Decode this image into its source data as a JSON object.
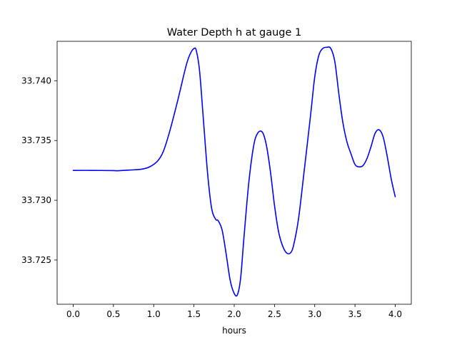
{
  "chart_data": {
    "type": "line",
    "title": "Water Depth h at gauge 1",
    "xlabel": "hours",
    "ylabel": "",
    "xlim": [
      -0.2,
      4.2
    ],
    "ylim": [
      33.7213,
      33.7433
    ],
    "xticks": [
      0.0,
      0.5,
      1.0,
      1.5,
      2.0,
      2.5,
      3.0,
      3.5,
      4.0
    ],
    "xtick_labels": [
      "0.0",
      "0.5",
      "1.0",
      "1.5",
      "2.0",
      "2.5",
      "3.0",
      "3.5",
      "4.0"
    ],
    "yticks": [
      33.725,
      33.73,
      33.735,
      33.74
    ],
    "ytick_labels": [
      "33.725",
      "33.730",
      "33.735",
      "33.740"
    ],
    "grid": false,
    "series": [
      {
        "color": "#0000ff",
        "x": [
          0.0,
          0.25,
          0.5,
          0.55,
          0.7,
          0.85,
          0.95,
          1.05,
          1.12,
          1.2,
          1.3,
          1.4,
          1.45,
          1.5,
          1.53,
          1.57,
          1.62,
          1.67,
          1.72,
          1.77,
          1.8,
          1.85,
          1.9,
          1.95,
          2.0,
          2.04,
          2.08,
          2.12,
          2.18,
          2.24,
          2.29,
          2.35,
          2.4,
          2.45,
          2.5,
          2.55,
          2.6,
          2.65,
          2.7,
          2.74,
          2.8,
          2.87,
          2.95,
          3.0,
          3.05,
          3.1,
          3.15,
          3.2,
          3.25,
          3.3,
          3.35,
          3.4,
          3.45,
          3.5,
          3.55,
          3.6,
          3.65,
          3.7,
          3.75,
          3.8,
          3.85,
          3.9,
          3.95,
          4.0
        ],
        "y": [
          33.7325,
          33.7325,
          33.73248,
          33.73247,
          33.73253,
          33.7326,
          33.7328,
          33.7333,
          33.7341,
          33.7358,
          33.7384,
          33.7412,
          33.7422,
          33.7427,
          33.7425,
          33.7408,
          33.7365,
          33.7322,
          33.7293,
          33.7284,
          33.7283,
          33.7275,
          33.7255,
          33.7233,
          33.7222,
          33.7221,
          33.7235,
          33.7268,
          33.7314,
          33.7345,
          33.7356,
          33.7357,
          33.7346,
          33.7324,
          33.7296,
          33.7274,
          33.7262,
          33.7256,
          33.7256,
          33.7263,
          33.7285,
          33.7325,
          33.7372,
          33.7403,
          33.7421,
          33.7427,
          33.7428,
          33.7427,
          33.7416,
          33.7389,
          33.7365,
          33.7349,
          33.7339,
          33.733,
          33.7328,
          33.7329,
          33.7335,
          33.7345,
          33.7356,
          33.7359,
          33.7353,
          33.7337,
          33.7318,
          33.7303
        ]
      }
    ]
  }
}
